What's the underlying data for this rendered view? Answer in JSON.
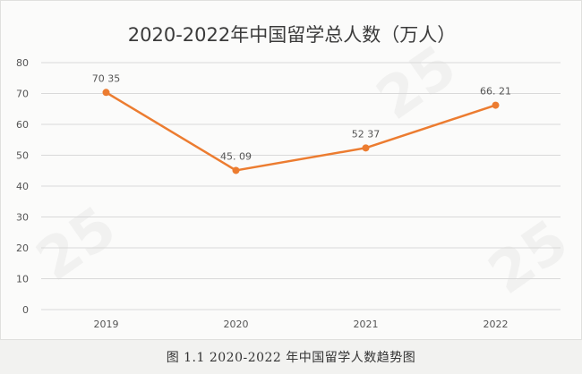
{
  "chart_data": {
    "type": "line",
    "title": "2020-2022年中国留学总人数（万人）",
    "categories": [
      "2019",
      "2020",
      "2021",
      "2022"
    ],
    "series": [
      {
        "values": [
          70.35,
          45.09,
          52.37,
          66.21
        ]
      }
    ],
    "data_labels": [
      "70 35",
      "45. 09",
      "52 37",
      "66. 21"
    ],
    "y_ticks": [
      0,
      10,
      20,
      30,
      40,
      50,
      60,
      70,
      80
    ],
    "ylim": [
      0,
      80
    ],
    "grid": true,
    "legend": "none",
    "line_color": "#ec7c30",
    "grid_color": "#d9d9d9"
  },
  "caption": "图 1.1 2020-2022 年中国留学人数趋势图",
  "watermarks": [
    "25",
    "25",
    "25"
  ]
}
